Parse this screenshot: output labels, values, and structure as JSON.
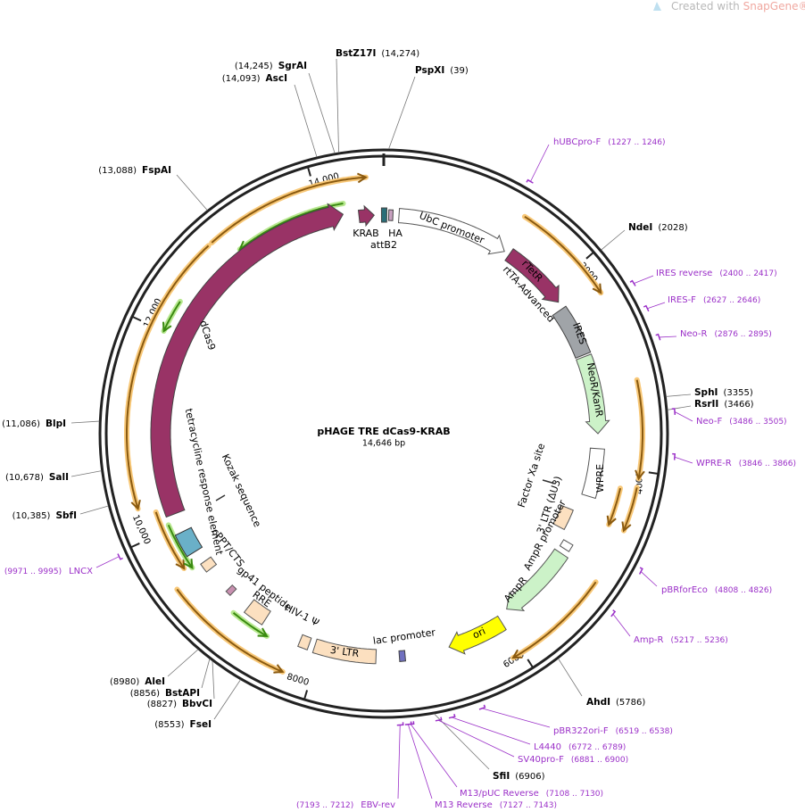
{
  "watermark": {
    "prefix": "Created with",
    "brand": "SnapGene®"
  },
  "plasmid": {
    "name": "pHAGE TRE dCas9-KRAB",
    "size": "14,646 bp"
  },
  "ruler": [
    "2000",
    "4000",
    "6000",
    "8000",
    "10,000",
    "12,000",
    "14,000"
  ],
  "enzymes": [
    {
      "name": "SgrAI",
      "position": "(14,245)"
    },
    {
      "name": "AscI",
      "position": "(14,093)"
    },
    {
      "name": "BstZ17I",
      "position": "(14,274)"
    },
    {
      "name": "PspXI",
      "position": "(39)"
    },
    {
      "name": "FspAI",
      "position": "(13,088)"
    },
    {
      "name": "NdeI",
      "position": "(2028)"
    },
    {
      "name": "SphI",
      "position": "(3355)"
    },
    {
      "name": "RsrII",
      "position": "(3466)"
    },
    {
      "name": "AhdI",
      "position": "(5786)"
    },
    {
      "name": "SfiI",
      "position": "(6906)"
    },
    {
      "name": "FseI",
      "position": "(8553)"
    },
    {
      "name": "BbvCI",
      "position": "(8827)"
    },
    {
      "name": "BstAPI",
      "position": "(8856)"
    },
    {
      "name": "AleI",
      "position": "(8980)"
    },
    {
      "name": "SbfI",
      "position": "(10,385)"
    },
    {
      "name": "SalI",
      "position": "(10,678)"
    },
    {
      "name": "BlpI",
      "position": "(11,086)"
    }
  ],
  "primers": [
    {
      "name": "hUBCpro-F",
      "range": "(1227 .. 1246)"
    },
    {
      "name": "IRES reverse",
      "range": "(2400 .. 2417)"
    },
    {
      "name": "IRES-F",
      "range": "(2627 .. 2646)"
    },
    {
      "name": "Neo-R",
      "range": "(2876 .. 2895)"
    },
    {
      "name": "Neo-F",
      "range": "(3486 .. 3505)"
    },
    {
      "name": "WPRE-R",
      "range": "(3846 .. 3866)"
    },
    {
      "name": "pBRforEco",
      "range": "(4808 .. 4826)"
    },
    {
      "name": "Amp-R",
      "range": "(5217 .. 5236)"
    },
    {
      "name": "pBR322ori-F",
      "range": "(6519 .. 6538)"
    },
    {
      "name": "L4440",
      "range": "(6772 .. 6789)"
    },
    {
      "name": "SV40pro-F",
      "range": "(6881 .. 6900)"
    },
    {
      "name": "M13/pUC Reverse",
      "range": "(7108 .. 7130)"
    },
    {
      "name": "M13 Reverse",
      "range": "(7127 .. 7143)"
    },
    {
      "name": "EBV-rev",
      "range": "(7193 .. 7212)"
    },
    {
      "name": "LNCX",
      "range": "(9971 .. 9995)"
    }
  ],
  "features": [
    "KRAB",
    "HA",
    "attB2",
    "UbC promoter",
    "rTetR",
    "rtTA-Advanced",
    "IRES",
    "NeoR/KanR",
    "WPRE",
    "3' LTR (ΔU3)",
    "AmpR promoter",
    "AmpR",
    "ori",
    "lac promoter",
    "3' LTR",
    "HIV-1 Ψ",
    "RRE",
    "gp41 peptide",
    "cPPT/CTS",
    "tetracycline response element",
    "dCas9",
    "Kozak sequence",
    "Factor Xa site"
  ]
}
